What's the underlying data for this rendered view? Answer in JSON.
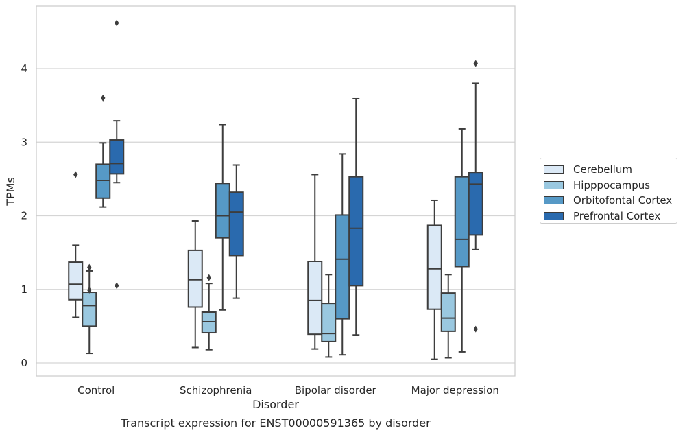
{
  "chart_data": {
    "type": "box",
    "title": "Transcript expression for ENST00000591365 by disorder",
    "xlabel": "Disorder",
    "ylabel": "TPMs",
    "ylim": [
      -0.17,
      4.85
    ],
    "yticks": [
      0,
      1,
      2,
      3,
      4
    ],
    "grid": true,
    "legend_position": "right",
    "categories": [
      "Control",
      "Schizophrenia",
      "Bipolar disorder",
      "Major depression"
    ],
    "series": [
      {
        "name": "Cerebellum",
        "color": "#dbe9f6",
        "boxes": [
          {
            "whisker_low": 0.62,
            "q1": 0.86,
            "median": 1.07,
            "q3": 1.37,
            "whisker_high": 1.6,
            "outliers": [
              2.56
            ]
          },
          {
            "whisker_low": 0.21,
            "q1": 0.76,
            "median": 1.13,
            "q3": 1.53,
            "whisker_high": 1.93,
            "outliers": []
          },
          {
            "whisker_low": 0.19,
            "q1": 0.39,
            "median": 0.85,
            "q3": 1.38,
            "whisker_high": 2.56,
            "outliers": []
          },
          {
            "whisker_low": 0.05,
            "q1": 0.73,
            "median": 1.28,
            "q3": 1.87,
            "whisker_high": 2.21,
            "outliers": []
          }
        ]
      },
      {
        "name": "Hipppocampus",
        "color": "#9ac8e0",
        "boxes": [
          {
            "whisker_low": 0.13,
            "q1": 0.5,
            "median": 0.78,
            "q3": 0.96,
            "whisker_high": 1.25,
            "outliers": [
              0.99,
              1.3
            ]
          },
          {
            "whisker_low": 0.18,
            "q1": 0.41,
            "median": 0.56,
            "q3": 0.69,
            "whisker_high": 1.08,
            "outliers": [
              1.16
            ]
          },
          {
            "whisker_low": 0.08,
            "q1": 0.29,
            "median": 0.4,
            "q3": 0.81,
            "whisker_high": 1.2,
            "outliers": []
          },
          {
            "whisker_low": 0.07,
            "q1": 0.43,
            "median": 0.61,
            "q3": 0.95,
            "whisker_high": 1.2,
            "outliers": []
          }
        ]
      },
      {
        "name": "Orbitofontal Cortex",
        "color": "#5699c6",
        "boxes": [
          {
            "whisker_low": 2.12,
            "q1": 2.24,
            "median": 2.48,
            "q3": 2.7,
            "whisker_high": 2.99,
            "outliers": [
              3.6
            ]
          },
          {
            "whisker_low": 0.72,
            "q1": 1.7,
            "median": 2.0,
            "q3": 2.44,
            "whisker_high": 3.24,
            "outliers": []
          },
          {
            "whisker_low": 0.11,
            "q1": 0.6,
            "median": 1.41,
            "q3": 2.01,
            "whisker_high": 2.84,
            "outliers": []
          },
          {
            "whisker_low": 0.15,
            "q1": 1.31,
            "median": 1.68,
            "q3": 2.53,
            "whisker_high": 3.18,
            "outliers": []
          }
        ]
      },
      {
        "name": "Prefrontal Cortex",
        "color": "#2a6aae",
        "boxes": [
          {
            "whisker_low": 2.45,
            "q1": 2.57,
            "median": 2.71,
            "q3": 3.03,
            "whisker_high": 3.29,
            "outliers": [
              1.05,
              4.62
            ]
          },
          {
            "whisker_low": 0.88,
            "q1": 1.46,
            "median": 2.05,
            "q3": 2.32,
            "whisker_high": 2.69,
            "outliers": []
          },
          {
            "whisker_low": 0.38,
            "q1": 1.05,
            "median": 1.83,
            "q3": 2.53,
            "whisker_high": 3.59,
            "outliers": []
          },
          {
            "whisker_low": 1.54,
            "q1": 1.74,
            "median": 2.43,
            "q3": 2.59,
            "whisker_high": 3.8,
            "outliers": [
              0.46,
              4.07
            ]
          }
        ]
      }
    ]
  }
}
